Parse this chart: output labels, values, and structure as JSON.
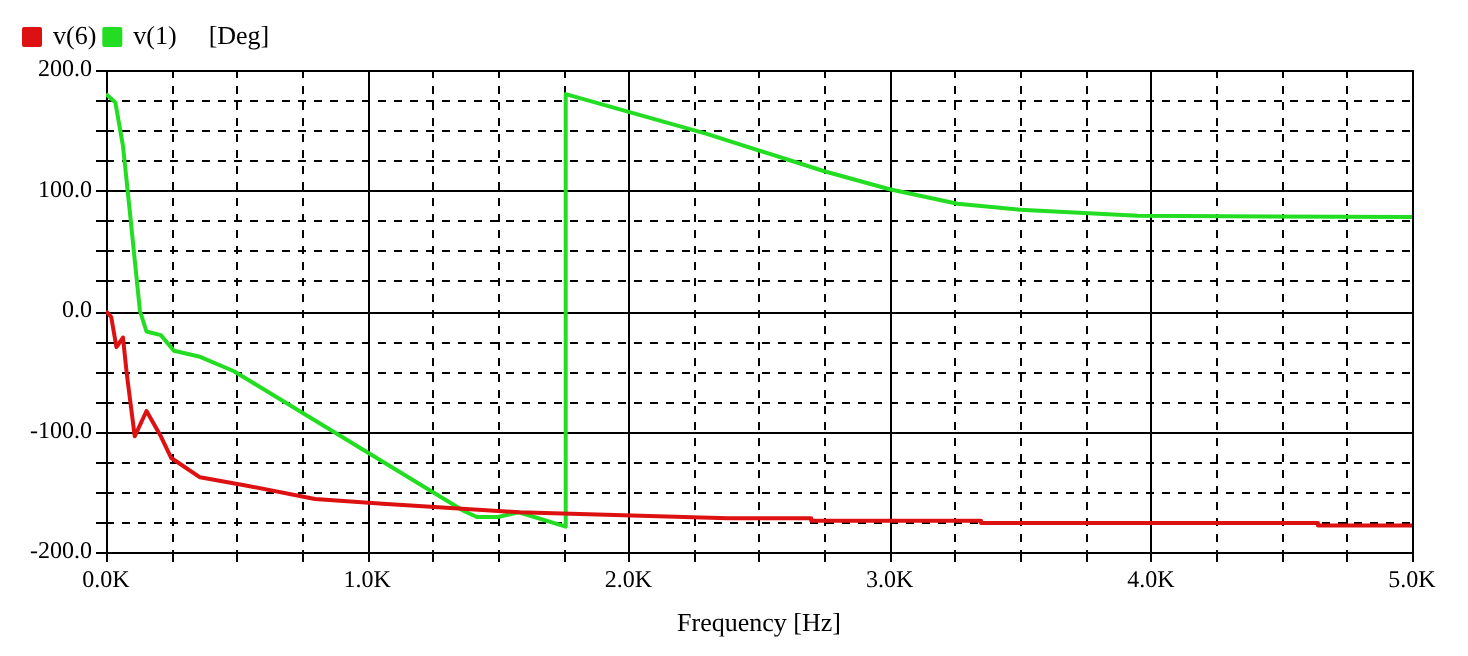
{
  "chart_data": {
    "type": "line",
    "xlabel": "Frequency [Hz]",
    "ylabel": "[Deg]",
    "xlim": [
      0,
      5000
    ],
    "ylim": [
      -200,
      200
    ],
    "xticks": [
      {
        "value": 0,
        "label": "0.0K"
      },
      {
        "value": 250,
        "label": null
      },
      {
        "value": 500,
        "label": null
      },
      {
        "value": 750,
        "label": null
      },
      {
        "value": 1000,
        "label": "1.0K"
      },
      {
        "value": 1250,
        "label": null
      },
      {
        "value": 1500,
        "label": null
      },
      {
        "value": 1750,
        "label": null
      },
      {
        "value": 2000,
        "label": "2.0K"
      },
      {
        "value": 2250,
        "label": null
      },
      {
        "value": 2500,
        "label": null
      },
      {
        "value": 2750,
        "label": null
      },
      {
        "value": 3000,
        "label": "3.0K"
      },
      {
        "value": 3250,
        "label": null
      },
      {
        "value": 3500,
        "label": null
      },
      {
        "value": 3750,
        "label": null
      },
      {
        "value": 4000,
        "label": "4.0K"
      },
      {
        "value": 4250,
        "label": null
      },
      {
        "value": 4500,
        "label": null
      },
      {
        "value": 4750,
        "label": null
      },
      {
        "value": 5000,
        "label": "5.0K"
      }
    ],
    "yticks": [
      {
        "value": -200,
        "label": "-200.0"
      },
      {
        "value": -175,
        "label": null
      },
      {
        "value": -150,
        "label": null
      },
      {
        "value": -125,
        "label": null
      },
      {
        "value": -100,
        "label": "-100.0"
      },
      {
        "value": -75,
        "label": null
      },
      {
        "value": -50,
        "label": null
      },
      {
        "value": -25,
        "label": null
      },
      {
        "value": 0,
        "label": "0.0"
      },
      {
        "value": 25,
        "label": null
      },
      {
        "value": 50,
        "label": null
      },
      {
        "value": 75,
        "label": null
      },
      {
        "value": 100,
        "label": "100.0"
      },
      {
        "value": 125,
        "label": null
      },
      {
        "value": 150,
        "label": null
      },
      {
        "value": 175,
        "label": null
      },
      {
        "value": 200,
        "label": "200.0"
      }
    ],
    "grid": true,
    "legend": "top left",
    "marker": "none",
    "line_style": "solid",
    "series": [
      {
        "name": "v(6)",
        "color": "#dd1111",
        "x": [
          0,
          20,
          40,
          65,
          80,
          110,
          155,
          210,
          250,
          360,
          540,
          800,
          1060,
          1580,
          2380,
          2700,
          2700,
          3350,
          3350,
          4640,
          4640,
          5000
        ],
        "values": [
          0,
          -5,
          -30,
          -22,
          -53,
          -104,
          -83,
          -104,
          -122,
          -138,
          -145,
          -156,
          -160,
          -167,
          -172,
          -172,
          -174,
          -174,
          -176,
          -176,
          -178,
          -178
        ]
      },
      {
        "name": "v(1)",
        "color": "#22dd22",
        "x": [
          0,
          36,
          65,
          90,
          130,
          155,
          210,
          260,
          360,
          490,
          1370,
          1420,
          1500,
          1580,
          1760,
          1760,
          2300,
          2750,
          3000,
          3260,
          3500,
          3950,
          5000
        ],
        "values": [
          180,
          173,
          137,
          85,
          0,
          -17,
          -20,
          -33,
          -38,
          -50,
          -166,
          -171,
          -171,
          -167,
          -179,
          180,
          147,
          116,
          101,
          89,
          84,
          79,
          78
        ]
      }
    ]
  }
}
